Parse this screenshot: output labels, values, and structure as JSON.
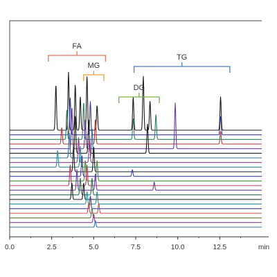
{
  "chart_data": {
    "type": "line",
    "title": "",
    "xlabel": "",
    "ylabel": "",
    "x_unit": "min",
    "xlim": [
      0,
      15
    ],
    "x_ticks": [
      "0.0",
      "2.5",
      "5.0",
      "7.5",
      "10.0",
      "12.5"
    ],
    "grid": false,
    "legend": "none",
    "peak_groups": [
      {
        "label": "FA",
        "color": "#e8735a",
        "x_range": [
          2.3,
          5.7
        ]
      },
      {
        "label": "MG",
        "color": "#e8a23a",
        "x_range": [
          4.4,
          5.6
        ]
      },
      {
        "label": "DG",
        "color": "#7ab04a",
        "x_range": [
          6.5,
          8.9
        ]
      },
      {
        "label": "TG",
        "color": "#4a7fc4",
        "x_range": [
          7.4,
          13.1
        ]
      }
    ],
    "series": [
      {
        "color": "#1a1a1a",
        "peaks": [
          {
            "x": 2.75,
            "h": 0.55
          },
          {
            "x": 3.5,
            "h": 0.7
          },
          {
            "x": 3.9,
            "h": 0.55
          },
          {
            "x": 4.2,
            "h": 0.4
          },
          {
            "x": 4.6,
            "h": 0.65
          },
          {
            "x": 5.2,
            "h": 0.3
          },
          {
            "x": 7.35,
            "h": 0.4
          },
          {
            "x": 7.95,
            "h": 0.65
          },
          {
            "x": 8.35,
            "h": 0.35
          },
          {
            "x": 12.55,
            "h": 0.4
          }
        ]
      },
      {
        "color": "#3a3fa0",
        "peaks": [
          {
            "x": 3.6,
            "h": 0.45
          },
          {
            "x": 4.8,
            "h": 0.4
          },
          {
            "x": 12.55,
            "h": 0.22
          }
        ]
      },
      {
        "color": "#2f7f5f",
        "peaks": [
          {
            "x": 3.4,
            "h": 0.35
          },
          {
            "x": 4.4,
            "h": 0.45
          },
          {
            "x": 7.35,
            "h": 0.25
          },
          {
            "x": 8.7,
            "h": 0.3
          }
        ]
      },
      {
        "color": "#b03a3a",
        "peaks": [
          {
            "x": 3.1,
            "h": 0.2
          },
          {
            "x": 5.1,
            "h": 0.3
          },
          {
            "x": 12.55,
            "h": 0.15
          }
        ]
      },
      {
        "color": "#6a3fa0",
        "peaks": [
          {
            "x": 3.7,
            "h": 0.5
          },
          {
            "x": 4.5,
            "h": 0.35
          },
          {
            "x": 9.85,
            "h": 0.55
          }
        ]
      },
      {
        "color": "#1a1a1a",
        "peaks": [
          {
            "x": 3.9,
            "h": 0.45
          },
          {
            "x": 4.7,
            "h": 0.4
          },
          {
            "x": 8.2,
            "h": 0.35
          }
        ]
      },
      {
        "color": "#2a6fb0",
        "peaks": [
          {
            "x": 3.55,
            "h": 0.3
          },
          {
            "x": 4.9,
            "h": 0.35
          }
        ]
      },
      {
        "color": "#8a3f8a",
        "peaks": [
          {
            "x": 4.1,
            "h": 0.3
          },
          {
            "x": 4.75,
            "h": 0.3
          }
        ]
      },
      {
        "color": "#2f8f8f",
        "peaks": [
          {
            "x": 2.85,
            "h": 0.2
          },
          {
            "x": 4.2,
            "h": 0.25
          }
        ]
      },
      {
        "color": "#1a1a1a",
        "peaks": [
          {
            "x": 3.8,
            "h": 0.3
          },
          {
            "x": 5.0,
            "h": 0.3
          }
        ]
      },
      {
        "color": "#3a3fa0",
        "peaks": [
          {
            "x": 4.3,
            "h": 0.25
          },
          {
            "x": 7.3,
            "h": 0.08
          }
        ]
      },
      {
        "color": "#4a8f3a",
        "peaks": [
          {
            "x": 4.5,
            "h": 0.25
          },
          {
            "x": 5.2,
            "h": 0.25
          }
        ]
      },
      {
        "color": "#b03a5a",
        "peaks": [
          {
            "x": 3.6,
            "h": 0.25
          },
          {
            "x": 4.6,
            "h": 0.25
          }
        ]
      },
      {
        "color": "#6a3fa0",
        "peaks": [
          {
            "x": 4.0,
            "h": 0.25
          },
          {
            "x": 5.1,
            "h": 0.2
          },
          {
            "x": 8.6,
            "h": 0.1
          }
        ]
      },
      {
        "color": "#2f6f4f",
        "peaks": [
          {
            "x": 4.2,
            "h": 0.2
          },
          {
            "x": 4.9,
            "h": 0.2
          }
        ]
      },
      {
        "color": "#1a1a1a",
        "peaks": [
          {
            "x": 3.7,
            "h": 0.2
          },
          {
            "x": 4.4,
            "h": 0.2
          }
        ]
      },
      {
        "color": "#2a8fa0",
        "peaks": [
          {
            "x": 4.6,
            "h": 0.15
          },
          {
            "x": 5.2,
            "h": 0.15
          }
        ]
      },
      {
        "color": "#3a3fa0",
        "peaks": [
          {
            "x": 4.8,
            "h": 0.15
          }
        ]
      },
      {
        "color": "#d04a4a",
        "peaks": [
          {
            "x": 4.7,
            "h": 0.12
          },
          {
            "x": 5.3,
            "h": 0.12
          }
        ]
      },
      {
        "color": "#5a7f3a",
        "peaks": [
          {
            "x": 4.9,
            "h": 0.12
          }
        ]
      },
      {
        "color": "#8a3f8a",
        "peaks": [
          {
            "x": 5.0,
            "h": 0.1
          }
        ]
      },
      {
        "color": "#3a6fa0",
        "peaks": [
          {
            "x": 5.1,
            "h": 0.08
          }
        ]
      }
    ]
  }
}
